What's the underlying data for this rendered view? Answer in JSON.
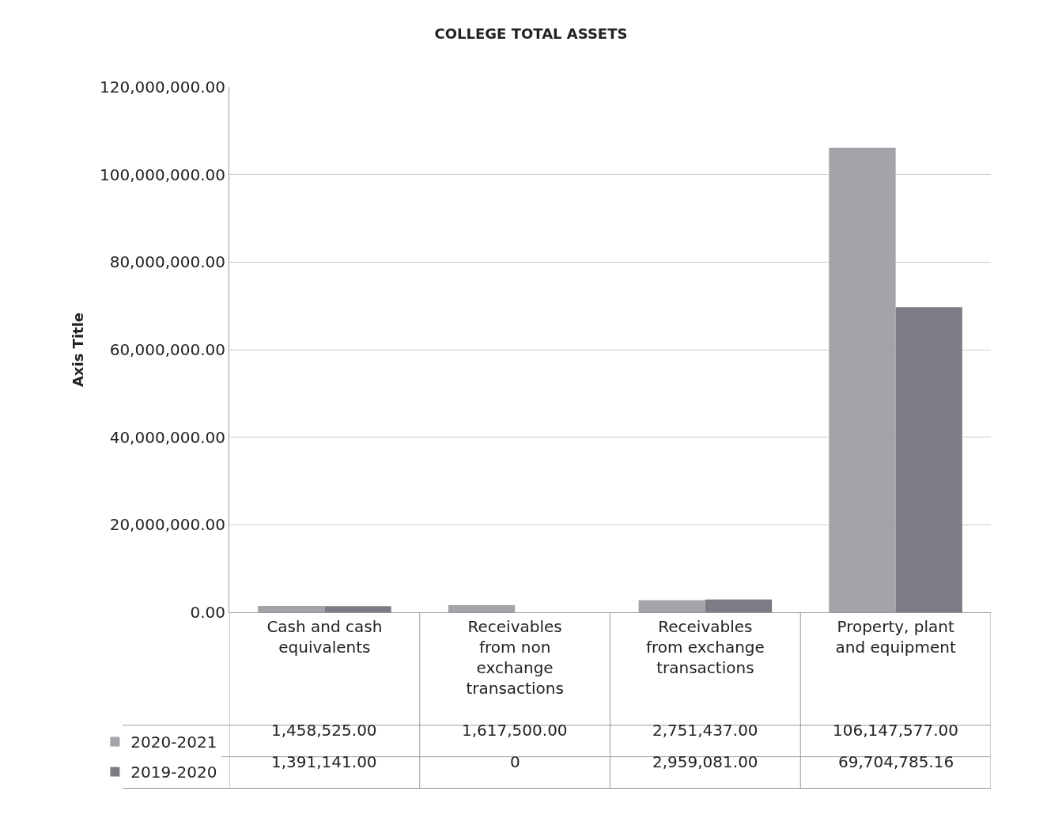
{
  "chart_data": {
    "type": "bar",
    "title": "COLLEGE TOTAL ASSETS",
    "ylabel": "Axis Title",
    "categories": [
      "Cash and cash equivalents",
      "Receivables from non exchange transactions",
      "Receivables from exchange transactions",
      "Property, plant and equipment"
    ],
    "series": [
      {
        "name": "2020-2021",
        "color": "#a3a3aa",
        "values": [
          1458525.0,
          1617500.0,
          2751437.0,
          106147577.0
        ],
        "value_labels": [
          "1,458,525.00",
          "1,617,500.00",
          "2,751,437.00",
          "106,147,577.00"
        ]
      },
      {
        "name": "2019-2020",
        "color": "#7c7c84",
        "values": [
          1391141.0,
          0,
          2959081.0,
          69704785.16
        ],
        "value_labels": [
          "1,391,141.00",
          "0",
          "2,959,081.00",
          "69,704,785.16"
        ]
      }
    ],
    "ylim": [
      0,
      120000000
    ],
    "yticks": [
      {
        "value": 0,
        "label": "0.00"
      },
      {
        "value": 20000000,
        "label": "20,000,000.00"
      },
      {
        "value": 40000000,
        "label": "40,000,000.00"
      },
      {
        "value": 60000000,
        "label": "60,000,000.00"
      },
      {
        "value": 80000000,
        "label": "80,000,000.00"
      },
      {
        "value": 100000000,
        "label": "100,000,000.00"
      },
      {
        "value": 120000000,
        "label": "120,000,000.00"
      }
    ],
    "grid": "y",
    "legend": "bottom left"
  }
}
